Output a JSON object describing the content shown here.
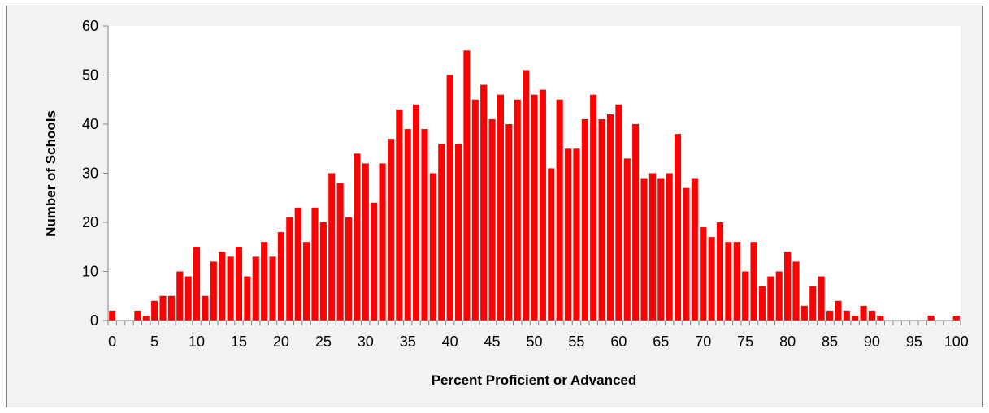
{
  "chart_data": {
    "type": "bar",
    "title": "",
    "xlabel": "Percent Proficient or Advanced",
    "ylabel": "Number of Schools",
    "ylim": [
      0,
      60
    ],
    "yticks": [
      0,
      10,
      20,
      30,
      40,
      50,
      60
    ],
    "xticks": [
      0,
      5,
      10,
      15,
      20,
      25,
      30,
      35,
      40,
      45,
      50,
      55,
      60,
      65,
      70,
      75,
      80,
      85,
      90,
      95,
      100
    ],
    "grid": false,
    "legend": "none",
    "bar_color": "#ff0000",
    "plot_background": "#ffffff",
    "chart_background": "#f2f2f2",
    "x": [
      0,
      1,
      2,
      3,
      4,
      5,
      6,
      7,
      8,
      9,
      10,
      11,
      12,
      13,
      14,
      15,
      16,
      17,
      18,
      19,
      20,
      21,
      22,
      23,
      24,
      25,
      26,
      27,
      28,
      29,
      30,
      31,
      32,
      33,
      34,
      35,
      36,
      37,
      38,
      39,
      40,
      41,
      42,
      43,
      44,
      45,
      46,
      47,
      48,
      49,
      50,
      51,
      52,
      53,
      54,
      55,
      56,
      57,
      58,
      59,
      60,
      61,
      62,
      63,
      64,
      65,
      66,
      67,
      68,
      69,
      70,
      71,
      72,
      73,
      74,
      75,
      76,
      77,
      78,
      79,
      80,
      81,
      82,
      83,
      84,
      85,
      86,
      87,
      88,
      89,
      90,
      91,
      92,
      93,
      94,
      95,
      96,
      97,
      98,
      99,
      100
    ],
    "values": [
      2,
      0,
      0,
      2,
      1,
      4,
      5,
      5,
      10,
      9,
      15,
      5,
      12,
      14,
      13,
      15,
      9,
      13,
      16,
      13,
      18,
      21,
      23,
      16,
      23,
      20,
      30,
      28,
      21,
      34,
      32,
      24,
      32,
      37,
      43,
      39,
      44,
      39,
      30,
      36,
      50,
      36,
      55,
      45,
      48,
      41,
      46,
      40,
      45,
      51,
      46,
      47,
      31,
      45,
      35,
      35,
      41,
      46,
      41,
      42,
      44,
      33,
      40,
      29,
      30,
      29,
      30,
      38,
      27,
      29,
      19,
      17,
      20,
      16,
      16,
      10,
      16,
      7,
      9,
      10,
      14,
      12,
      3,
      7,
      9,
      2,
      4,
      2,
      1,
      3,
      2,
      1,
      0,
      0,
      0,
      0,
      0,
      1,
      0,
      0,
      1
    ]
  }
}
